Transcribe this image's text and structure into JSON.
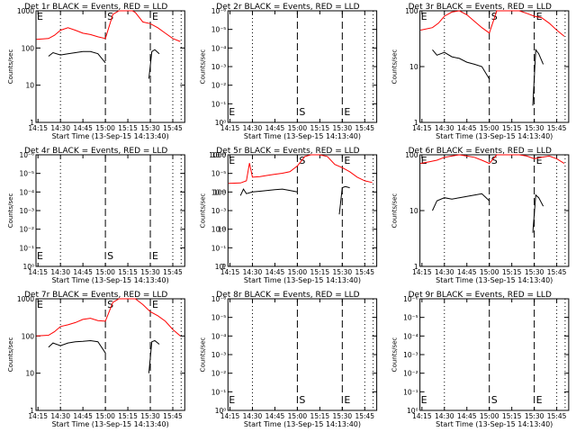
{
  "chart_data": [
    {
      "type": "line",
      "title": "Det 1r BLACK = Events, RED = LLD",
      "xlabel": "Start Time (13-Sep-15 14:13:40)",
      "ylabel": "Counts/sec",
      "yscale": "log",
      "ylim": [
        1,
        1000
      ],
      "ytick_labels": [
        "1",
        "10",
        "100",
        "1000"
      ],
      "xtick_labels": [
        "14:15",
        "14:30",
        "14:45",
        "15:00",
        "15:15",
        "15:30",
        "15:45"
      ],
      "markers": {
        "S": "15:00",
        "E": "15:30"
      },
      "grid": "dotted at 14:30 and 15:45",
      "series": [
        {
          "color": "#ff0000",
          "x": [
            "14:14",
            "14:22",
            "14:26",
            "14:30",
            "14:35",
            "14:40",
            "14:45",
            "14:50",
            "14:55",
            "15:00",
            "15:05",
            "15:09",
            "15:15",
            "15:18",
            "15:20",
            "15:25",
            "15:30",
            "15:35",
            "15:40",
            "15:45",
            "15:50"
          ],
          "y": [
            170,
            180,
            220,
            300,
            350,
            300,
            250,
            230,
            200,
            180,
            800,
            1000,
            1000,
            1000,
            900,
            500,
            450,
            350,
            250,
            180,
            150
          ]
        },
        {
          "color": "#000000",
          "x": [
            "14:22",
            "14:25",
            "14:30",
            "14:35",
            "14:40",
            "14:45",
            "14:50",
            "14:55",
            "14:58",
            "15:00",
            null,
            "15:29",
            "15:31",
            "15:33",
            "15:36"
          ],
          "y": [
            60,
            75,
            65,
            70,
            75,
            80,
            80,
            70,
            50,
            40,
            null,
            15,
            80,
            90,
            70
          ]
        }
      ]
    },
    {
      "type": "line",
      "title": "Det 2r BLACK = Events, RED = LLD",
      "xlabel": "Start Time (13-Sep-15 14:13:40)",
      "ylabel": "Counts/sec",
      "yscale": "log",
      "ytick_labels": [
        "10⁰",
        "10⁻¹",
        "10⁻²",
        "10⁻³",
        "10⁻⁴",
        "10⁻⁵",
        "10⁻⁶"
      ],
      "xtick_labels": [
        "14:15",
        "14:30",
        "14:45",
        "15:00",
        "15:15",
        "15:30",
        "15:45"
      ],
      "markers": {
        "S": "15:00",
        "E": "15:30"
      },
      "grid": "dotted at 14:30 and 15:45",
      "series": []
    },
    {
      "type": "line",
      "title": "Det 3r BLACK = Events, RED = LLD",
      "xlabel": "Start Time (13-Sep-15 14:13:40)",
      "ylabel": "Counts/sec",
      "yscale": "log",
      "ylim": [
        1,
        100
      ],
      "ytick_labels": [
        "1",
        "10",
        "100"
      ],
      "xtick_labels": [
        "14:15",
        "14:30",
        "14:45",
        "15:00",
        "15:15",
        "15:30",
        "15:45"
      ],
      "markers": {
        "S": "15:00",
        "E": "15:30"
      },
      "grid": "dotted at 14:30 and 15:45",
      "series": [
        {
          "color": "#ff0000",
          "x": [
            "14:14",
            "14:22",
            "14:26",
            "14:30",
            "14:35",
            "14:40",
            "14:45",
            "14:50",
            "14:55",
            "15:00",
            "15:05",
            "15:10",
            "15:15",
            "15:20",
            "15:25",
            "15:30",
            "15:35",
            "15:40",
            "15:45",
            "15:50"
          ],
          "y": [
            45,
            50,
            60,
            80,
            95,
            100,
            85,
            65,
            50,
            40,
            100,
            100,
            100,
            100,
            90,
            80,
            75,
            60,
            45,
            35
          ]
        },
        {
          "color": "#000000",
          "x": [
            "14:22",
            "14:25",
            "14:30",
            "14:35",
            "14:40",
            "14:45",
            "14:50",
            "14:55",
            "15:00",
            null,
            "15:29",
            "15:31",
            "15:33",
            "15:36"
          ],
          "y": [
            20,
            16,
            18,
            15,
            14,
            12,
            11,
            10,
            6,
            null,
            2,
            20,
            17,
            11
          ]
        }
      ]
    },
    {
      "type": "line",
      "title": "Det 4r BLACK = Events, RED = LLD",
      "xlabel": "Start Time (13-Sep-15 14:13:40)",
      "ylabel": "Counts/sec",
      "yscale": "log",
      "ytick_labels": [
        "10⁰",
        "10⁻¹",
        "10⁻²",
        "10⁻³",
        "10⁻⁴",
        "10⁻⁵",
        "10⁻⁶"
      ],
      "xtick_labels": [
        "14:15",
        "14:30",
        "14:45",
        "15:00",
        "15:15",
        "15:30",
        "15:45"
      ],
      "markers": {
        "S": "15:00",
        "E": "15:30"
      },
      "grid": "dotted at 14:30 and 15:45",
      "series": []
    },
    {
      "type": "line",
      "title": "Det 5r BLACK = Events, RED = LLD",
      "xlabel": "Start Time (13-Sep-15 14:13:40)",
      "ylabel": "Counts/sec",
      "yscale": "log",
      "ytick_labels": [
        "10⁰",
        "10⁻¹",
        "10⁻²",
        "10⁻³",
        "10⁻⁴",
        "10⁻⁵",
        "10⁻⁶"
      ],
      "xtick_labels": [
        "14:15",
        "14:30",
        "14:45",
        "15:00",
        "15:15",
        "15:30",
        "15:45"
      ],
      "markers": {
        "S": "15:00",
        "E": "15:30"
      },
      "grid": "dotted at 14:30 and 15:45",
      "overlay_scale": {
        "ylim": [
          1,
          1000
        ],
        "ytick_labels": [
          "1",
          "10",
          "100",
          "1000"
        ]
      },
      "series": [
        {
          "color": "#ff0000",
          "x": [
            "14:14",
            "14:22",
            "14:26",
            "14:28",
            "14:30",
            "14:35",
            "14:40",
            "14:45",
            "14:50",
            "14:55",
            "15:00",
            "15:05",
            "15:09",
            "15:15",
            "15:20",
            "15:25",
            "15:30",
            "15:35",
            "15:40",
            "15:45",
            "15:50"
          ],
          "y": [
            170,
            175,
            200,
            600,
            250,
            260,
            280,
            300,
            320,
            350,
            500,
            900,
            1000,
            1000,
            900,
            550,
            450,
            350,
            250,
            200,
            180
          ]
        },
        {
          "color": "#000000",
          "x": [
            "14:22",
            "14:24",
            "14:26",
            "14:30",
            "14:35",
            "14:40",
            "14:45",
            "14:50",
            "14:55",
            "15:00",
            null,
            "15:28",
            "15:30",
            "15:32",
            "15:35"
          ],
          "y": [
            80,
            120,
            90,
            100,
            105,
            110,
            115,
            120,
            110,
            100,
            null,
            25,
            130,
            140,
            130
          ]
        }
      ]
    },
    {
      "type": "line",
      "title": "Det 6r BLACK = Events, RED = LLD",
      "xlabel": "Start Time (13-Sep-15 14:13:40)",
      "ylabel": "Counts/sec",
      "yscale": "log",
      "ylim": [
        1,
        100
      ],
      "ytick_labels": [
        "1",
        "10",
        "100"
      ],
      "xtick_labels": [
        "14:15",
        "14:30",
        "14:45",
        "15:00",
        "15:15",
        "15:30",
        "15:45"
      ],
      "markers": {
        "S": "15:00",
        "E": "15:30"
      },
      "grid": "dotted at 14:30 and 15:45",
      "series": [
        {
          "color": "#ff0000",
          "x": [
            "14:14",
            "14:20",
            "14:25",
            "14:30",
            "14:35",
            "14:40",
            "14:45",
            "14:50",
            "14:55",
            "15:00",
            "15:05",
            "15:10",
            "15:15",
            "15:20",
            "15:25",
            "15:30",
            "15:35",
            "15:40",
            "15:45",
            "15:50"
          ],
          "y": [
            70,
            75,
            80,
            90,
            95,
            100,
            95,
            90,
            80,
            70,
            100,
            100,
            100,
            100,
            95,
            85,
            90,
            95,
            85,
            70
          ]
        },
        {
          "color": "#000000",
          "x": [
            "14:22",
            "14:25",
            "14:30",
            "14:35",
            "14:40",
            "14:45",
            "14:50",
            "14:55",
            "15:00",
            null,
            "15:29",
            "15:31",
            "15:33",
            "15:36"
          ],
          "y": [
            10,
            15,
            17,
            16,
            17,
            18,
            19,
            20,
            15,
            null,
            4,
            19,
            17,
            12
          ]
        }
      ]
    },
    {
      "type": "line",
      "title": "Det 7r BLACK = Events, RED = LLD",
      "xlabel": "Start Time (13-Sep-15 14:13:40)",
      "ylabel": "Counts/sec",
      "yscale": "log",
      "ylim": [
        1,
        1000
      ],
      "ytick_labels": [
        "1",
        "10",
        "100",
        "1000"
      ],
      "xtick_labels": [
        "14:15",
        "14:30",
        "14:45",
        "15:00",
        "15:15",
        "15:30",
        "15:45"
      ],
      "markers": {
        "S": "15:00",
        "E": "15:30"
      },
      "grid": "dotted at 14:30 and 15:45",
      "series": [
        {
          "color": "#ff0000",
          "x": [
            "14:14",
            "14:22",
            "14:26",
            "14:30",
            "14:35",
            "14:40",
            "14:45",
            "14:50",
            "14:55",
            "15:00",
            "15:05",
            "15:09",
            "15:15",
            "15:20",
            "15:25",
            "15:30",
            "15:35",
            "15:40",
            "15:45",
            "15:50"
          ],
          "y": [
            100,
            105,
            130,
            180,
            200,
            230,
            280,
            300,
            260,
            250,
            800,
            1000,
            1000,
            1000,
            700,
            450,
            350,
            250,
            150,
            100
          ]
        },
        {
          "color": "#000000",
          "x": [
            "14:22",
            "14:25",
            "14:30",
            "14:35",
            "14:40",
            "14:45",
            "14:50",
            "14:55",
            "15:00",
            null,
            "15:29",
            "15:31",
            "15:33",
            "15:36"
          ],
          "y": [
            50,
            65,
            55,
            65,
            70,
            72,
            75,
            70,
            35,
            null,
            10,
            70,
            75,
            60
          ]
        }
      ]
    },
    {
      "type": "line",
      "title": "Det 8r BLACK = Events, RED = LLD",
      "xlabel": "Start Time (13-Sep-15 14:13:40)",
      "ylabel": "Counts/sec",
      "yscale": "log",
      "ytick_labels": [
        "10⁰",
        "10⁻¹",
        "10⁻²",
        "10⁻³",
        "10⁻⁴",
        "10⁻⁵",
        "10⁻⁶"
      ],
      "xtick_labels": [
        "14:15",
        "14:30",
        "14:45",
        "15:00",
        "15:15",
        "15:30",
        "15:45"
      ],
      "markers": {
        "S": "15:00",
        "E": "15:30"
      },
      "grid": "dotted at 14:30 and 15:45",
      "series": []
    },
    {
      "type": "line",
      "title": "Det 9r BLACK = Events, RED = LLD",
      "xlabel": "Start Time (13-Sep-15 14:13:40)",
      "ylabel": "Counts/sec",
      "yscale": "log",
      "ytick_labels": [
        "10⁰",
        "10⁻¹",
        "10⁻²",
        "10⁻³",
        "10⁻⁴",
        "10⁻⁵",
        "10⁻⁶"
      ],
      "xtick_labels": [
        "14:15",
        "14:30",
        "14:45",
        "15:00",
        "15:15",
        "15:30",
        "15:45"
      ],
      "markers": {
        "S": "15:00",
        "E": "15:30"
      },
      "grid": "dotted at 14:30 and 15:45",
      "series": []
    }
  ]
}
